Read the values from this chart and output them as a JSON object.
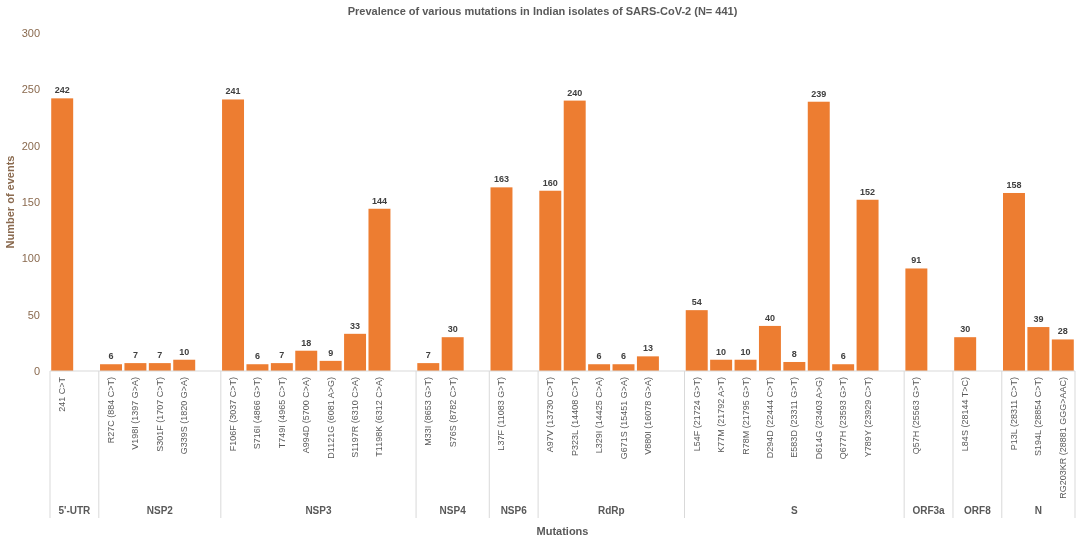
{
  "chart_data": {
    "type": "bar",
    "title": "Prevalence of various mutations in Indian isolates of SARS-CoV-2 (N= 441)",
    "xlabel": "Mutations",
    "ylabel": "Number of events",
    "categories": [
      "241 C>T",
      null,
      "R27C (884 C>T)",
      "V198I (1397 G>A)",
      "S301F (1707 C>T)",
      "G339S (1820 G>A)",
      null,
      "F106F (3037 C>T)",
      "S716I (4866 G>T)",
      "T749I (4965 C>T)",
      "A994D (5700 C>A)",
      "D1121G (6081 A>G)",
      "S1197R (6310 C>A)",
      "T1198K (6312 C>A)",
      null,
      "M33I (8653 G>T)",
      "S76S (8782 C>T)",
      null,
      "L37F (11083 G>T)",
      null,
      "A97V (13730 C>T)",
      "P323L (14408 C>T)",
      "L329I (14425 C>A)",
      "G671S (15451 G>A)",
      "V880I (16078 G>A)",
      null,
      "L54F (21724 G>T)",
      "K77M (21792 A>T)",
      "R78M (21795 G>T)",
      "D294D (22444 C>T)",
      "E583D (23311 G>T)",
      "D614G (23403 A>G)",
      "Q677H (23593 G>T)",
      "Y789Y (23929 C>T)",
      null,
      "Q57H (25563 G>T)",
      null,
      "L84S (28144 T>C)",
      null,
      "P13L (28311 C>T)",
      "S194L (28854 C>T)",
      "RG203KR (28881 GGG>AAC)"
    ],
    "annotations": [
      "5'-UTR",
      "NSP2",
      "NSP3",
      "NSP4",
      "NSP6",
      "RdRp",
      "S",
      "ORF3a",
      "ORF8",
      "N"
    ],
    "values": [
      242,
      null,
      6,
      7,
      7,
      10,
      null,
      241,
      6,
      7,
      18,
      9,
      33,
      144,
      null,
      7,
      30,
      null,
      163,
      null,
      160,
      240,
      6,
      6,
      13,
      null,
      54,
      10,
      10,
      40,
      8,
      239,
      6,
      152,
      null,
      91,
      null,
      30,
      null,
      158,
      39,
      28
    ],
    "color": "#ed7d31",
    "ylim": [
      0,
      300
    ],
    "yticks": [
      0,
      50,
      100,
      150,
      200,
      250,
      300
    ],
    "grid": false,
    "data_labels": true
  }
}
